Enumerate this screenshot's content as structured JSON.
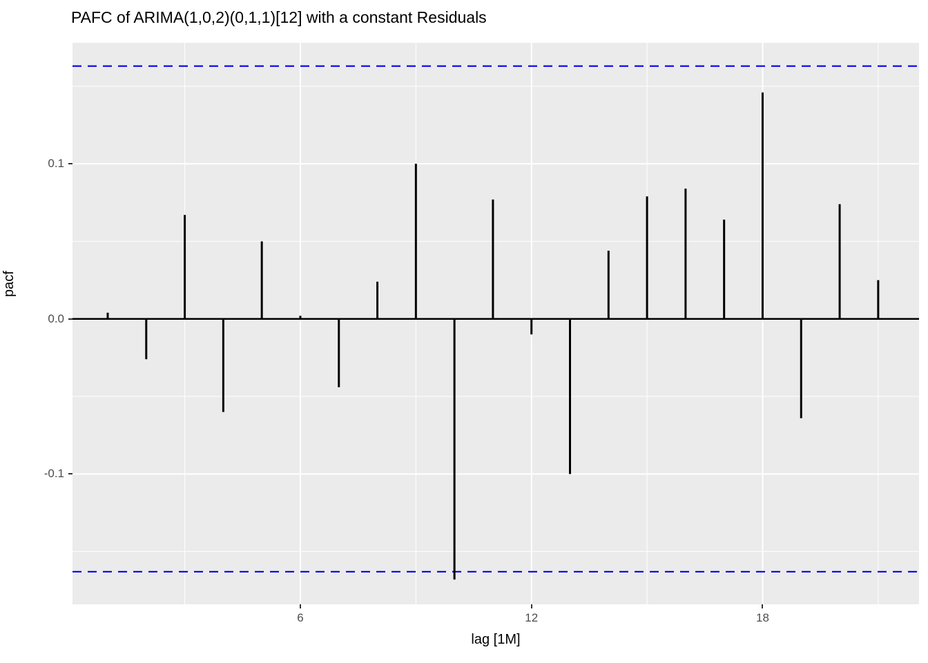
{
  "chart_data": {
    "type": "bar",
    "title": "PAFC of ARIMA(1,0,2)(0,1,1)[12] with a constant Residuals",
    "xlabel": "lag [1M]",
    "ylabel": "pacf",
    "x": [
      1,
      2,
      3,
      4,
      5,
      6,
      7,
      8,
      9,
      10,
      11,
      12,
      13,
      14,
      15,
      16,
      17,
      18,
      19,
      20,
      21
    ],
    "values": [
      0.004,
      -0.026,
      0.067,
      -0.06,
      0.05,
      0.002,
      -0.044,
      0.024,
      0.1,
      -0.168,
      0.077,
      -0.01,
      -0.1,
      0.044,
      0.079,
      0.084,
      0.064,
      0.146,
      -0.064,
      0.074,
      0.025
    ],
    "conf_bound": 0.163,
    "xlim": [
      0.086,
      22.06
    ],
    "ylim": [
      -0.184,
      0.178
    ],
    "x_major_ticks": [
      6,
      12,
      18
    ],
    "x_tick_labels": [
      "6",
      "12",
      "18"
    ],
    "x_minor_gridlines": [
      3,
      9,
      15,
      21
    ],
    "y_major_ticks": [
      0.1,
      0.0,
      -0.1
    ],
    "y_tick_labels": [
      "0.1",
      "0.0",
      "-0.1"
    ],
    "y_minor_gridlines": [
      0.15,
      0.05,
      -0.05,
      -0.15
    ],
    "legend": "none",
    "grid": "on",
    "colors": {
      "panel": "#EBEBEB",
      "grid": "#FFFFFF",
      "bar": "#000000",
      "zero_line": "#000000",
      "conf_line": "#0000EE",
      "tick_text": "#4D4D4D"
    }
  }
}
